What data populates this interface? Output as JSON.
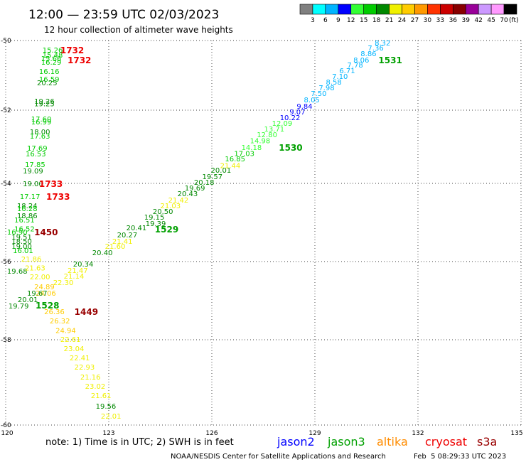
{
  "header": {
    "title": "12:00 — 23:59 UTC 02/03/2023",
    "subtitle": "12 hour collection of altimeter wave heights"
  },
  "footer": {
    "note": "note: 1) Time is in UTC; 2) SWH is in feet",
    "credit": "NOAA/NESDIS Center for Satellite Applications and Research",
    "timestamp": "Feb  5 08:29:33 UTC 2023"
  },
  "satellites": [
    {
      "name": "jason2",
      "color": "#0000ff"
    },
    {
      "name": "jason3",
      "color": "#00a000"
    },
    {
      "name": "altika",
      "color": "#ff8c00"
    },
    {
      "name": "cryosat",
      "color": "#ee0000"
    },
    {
      "name": "s3a",
      "color": "#990000"
    }
  ],
  "chart_data": {
    "type": "scatter",
    "title": "12:00 — 23:59 UTC 02/03/2023",
    "subtitle": "12 hour collection of altimeter wave heights",
    "xlim": [
      120,
      135
    ],
    "ylim": [
      -60,
      -50
    ],
    "x_ticks": [
      120,
      123,
      126,
      129,
      132,
      135
    ],
    "y_ticks": [
      -50,
      -52,
      -54,
      -56,
      -58,
      -60
    ],
    "grid": true,
    "color_scale": {
      "unit": "(ft)",
      "thresholds": [
        3,
        6,
        9,
        12,
        15,
        18,
        21,
        24,
        27,
        30,
        33,
        36,
        39,
        42,
        45,
        70
      ],
      "colors": [
        "#808080",
        "#00ffff",
        "#00b4ff",
        "#0000ff",
        "#33ff33",
        "#00cc00",
        "#008800",
        "#f0f000",
        "#ffcc00",
        "#ff9900",
        "#ff3300",
        "#cc0000",
        "#880000",
        "#990099",
        "#cc99ff",
        "#ff99ff",
        "#000000"
      ]
    },
    "tracks": [
      {
        "satellite": "cryosat",
        "pass_labels": [
          {
            "text": "1732",
            "lon": 121.59,
            "lat": -50.27
          },
          {
            "text": "1732",
            "lon": 121.8,
            "lat": -50.55
          }
        ],
        "points": [
          [
            121.07,
            -50.27,
            "15.26"
          ],
          [
            121.07,
            -50.41,
            "15.48"
          ],
          [
            121.03,
            -50.51,
            "15.66"
          ],
          [
            121.03,
            -50.61,
            "16.29"
          ],
          [
            120.97,
            -50.88,
            "16.16"
          ],
          [
            120.97,
            -51.1,
            "16.59"
          ],
          [
            120.91,
            -51.2,
            "20.25"
          ],
          [
            120.83,
            -51.73,
            "19.26"
          ],
          [
            120.83,
            -51.81,
            "19.25"
          ],
          [
            120.74,
            -52.23,
            "17.60"
          ],
          [
            120.74,
            -52.31,
            "16.99"
          ],
          [
            120.7,
            -52.58,
            "18.00"
          ],
          [
            120.7,
            -52.7,
            "17.63"
          ],
          [
            120.62,
            -53.03,
            "17.69"
          ],
          [
            120.58,
            -53.18,
            "16.53"
          ],
          [
            120.56,
            -53.48,
            "17.85"
          ],
          [
            120.5,
            -53.65,
            "19.09"
          ]
        ]
      },
      {
        "satellite": "cryosat",
        "pass_labels": [
          {
            "text": "1733",
            "lon": 120.97,
            "lat": -54.0
          },
          {
            "text": "1733",
            "lon": 121.18,
            "lat": -54.33
          }
        ],
        "points": [
          [
            120.5,
            -54.0,
            "19.00"
          ],
          [
            120.41,
            -54.33,
            "17.17"
          ],
          [
            120.33,
            -54.56,
            "18.24"
          ],
          [
            120.33,
            -54.64,
            "16.28"
          ],
          [
            120.33,
            -54.82,
            "18.86"
          ],
          [
            120.25,
            -54.93,
            "16.51"
          ]
        ]
      },
      {
        "satellite": "s3a",
        "pass_labels": [
          {
            "text": "1450",
            "lon": 120.83,
            "lat": -55.24
          }
        ],
        "points": [
          [
            120.25,
            -55.15,
            "16.52"
          ],
          [
            120.04,
            -55.24,
            "16.90"
          ],
          [
            120.17,
            -55.36,
            "19.51"
          ],
          [
            120.17,
            -55.47,
            "18.50"
          ],
          [
            120.17,
            -55.6,
            "19.00"
          ],
          [
            120.21,
            -55.71,
            "16.01"
          ],
          [
            120.04,
            -56.24,
            "19.68"
          ]
        ]
      },
      {
        "satellite": "s3a",
        "pass_labels": [
          {
            "text": "1449",
            "lon": 122.0,
            "lat": -57.27
          }
        ],
        "points": [
          [
            120.45,
            -55.93,
            "21.86"
          ],
          [
            120.56,
            -56.15,
            "21.63"
          ],
          [
            121.8,
            -56.22,
            "21.47"
          ],
          [
            121.69,
            -56.36,
            "21.14"
          ],
          [
            120.7,
            -56.38,
            "22.00"
          ],
          [
            121.38,
            -56.53,
            "22.30"
          ],
          [
            120.83,
            -56.64,
            "24.89"
          ],
          [
            120.87,
            -56.8,
            "24.06"
          ],
          [
            121.12,
            -57.27,
            "26.36"
          ],
          [
            121.28,
            -57.51,
            "26.32"
          ],
          [
            121.45,
            -57.75,
            "24.94"
          ],
          [
            121.59,
            -57.98,
            "22.61"
          ],
          [
            121.69,
            -58.2,
            "23.04"
          ],
          [
            121.86,
            -58.42,
            "22.41"
          ],
          [
            122.0,
            -58.63,
            "22.93"
          ],
          [
            122.17,
            -58.87,
            "21.16"
          ],
          [
            122.31,
            -59.08,
            "23.02"
          ],
          [
            122.48,
            -59.3,
            "21.61"
          ],
          [
            122.62,
            -59.55,
            "19.56"
          ],
          [
            122.77,
            -59.78,
            "22.01"
          ]
        ]
      },
      {
        "satellite": "jason3",
        "pass_labels": [
          {
            "text": "1531",
            "lon": 130.85,
            "lat": -50.55
          },
          {
            "text": "1530",
            "lon": 127.95,
            "lat": -53.01
          },
          {
            "text": "1529",
            "lon": 124.34,
            "lat": -55.16
          },
          {
            "text": "1528",
            "lon": 120.87,
            "lat": -57.11
          }
        ],
        "points": [
          [
            120.08,
            -57.13,
            "19.79"
          ],
          [
            120.35,
            -56.96,
            "20.01"
          ],
          [
            120.62,
            -56.8,
            "19.67"
          ],
          [
            121.96,
            -56.05,
            "20.34"
          ],
          [
            122.52,
            -55.76,
            "20.40"
          ],
          [
            122.89,
            -55.6,
            "21.60"
          ],
          [
            123.1,
            -55.47,
            "21.41"
          ],
          [
            123.24,
            -55.31,
            "20.27"
          ],
          [
            123.51,
            -55.13,
            "20.41"
          ],
          [
            124.07,
            -55.02,
            "19.39"
          ],
          [
            124.03,
            -54.85,
            "19.15"
          ],
          [
            124.28,
            -54.71,
            "20.50"
          ],
          [
            124.5,
            -54.56,
            "21.03"
          ],
          [
            124.73,
            -54.42,
            "21.42"
          ],
          [
            125.0,
            -54.25,
            "20.43"
          ],
          [
            125.21,
            -54.11,
            "19.69"
          ],
          [
            125.48,
            -53.96,
            "20.18"
          ],
          [
            125.72,
            -53.81,
            "19.57"
          ],
          [
            125.97,
            -53.63,
            "20.01"
          ],
          [
            126.24,
            -53.5,
            "21.44"
          ],
          [
            126.38,
            -53.32,
            "16.85"
          ],
          [
            126.65,
            -53.17,
            "17.03"
          ],
          [
            126.86,
            -53.01,
            "14.18"
          ],
          [
            127.11,
            -52.83,
            "14.98"
          ],
          [
            127.31,
            -52.66,
            "12.80"
          ],
          [
            127.52,
            -52.5,
            "13.71"
          ],
          [
            127.75,
            -52.35,
            "12.09"
          ],
          [
            127.98,
            -52.19,
            "10.22"
          ],
          [
            128.26,
            -52.04,
            "9.07"
          ],
          [
            128.47,
            -51.88,
            "9.84"
          ],
          [
            128.68,
            -51.69,
            "8.05"
          ],
          [
            128.88,
            -51.51,
            "7.50"
          ],
          [
            129.11,
            -51.35,
            "7.98"
          ],
          [
            129.32,
            -51.18,
            "8.58"
          ],
          [
            129.5,
            -51.02,
            "7.10"
          ],
          [
            129.71,
            -50.86,
            "6.71"
          ],
          [
            129.94,
            -50.69,
            "7.78"
          ],
          [
            130.12,
            -50.55,
            "8.06"
          ],
          [
            130.33,
            -50.37,
            "8.86"
          ],
          [
            130.54,
            -50.2,
            "7.36"
          ],
          [
            130.74,
            -50.06,
            "8.32"
          ]
        ]
      }
    ]
  }
}
